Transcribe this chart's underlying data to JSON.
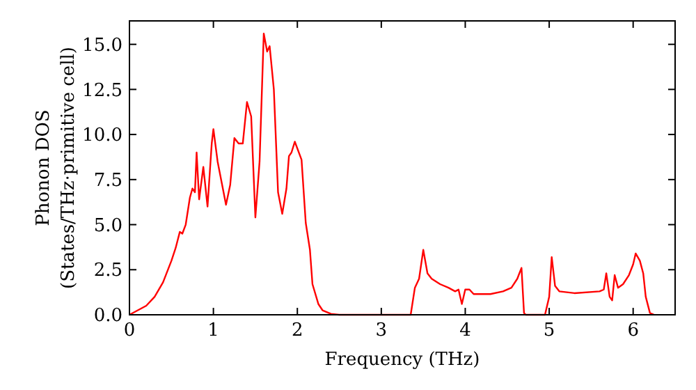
{
  "chart_data": {
    "type": "line",
    "xlabel": "Frequency (THz)",
    "ylabel": "Phonon DOS\n(States/THz·primitive cell)",
    "xlim": [
      0,
      6.5
    ],
    "ylim": [
      0,
      16.3
    ],
    "xticks": [
      0,
      1,
      2,
      3,
      4,
      5,
      6
    ],
    "yticks": [
      {
        "value": 0,
        "label": "0.0"
      },
      {
        "value": 2.5,
        "label": "2.5"
      },
      {
        "value": 5,
        "label": "5.0"
      },
      {
        "value": 7.5,
        "label": "7.5"
      },
      {
        "value": 10,
        "label": "10.0"
      },
      {
        "value": 12.5,
        "label": "12.5"
      },
      {
        "value": 15,
        "label": "15.0"
      }
    ],
    "grid": false,
    "marker": "none",
    "line_style": "solid",
    "series": [
      {
        "color": "#ff0000",
        "x": [
          0,
          0.2,
          0.3,
          0.4,
          0.5,
          0.55,
          0.6,
          0.63,
          0.67,
          0.72,
          0.75,
          0.78,
          0.8,
          0.83,
          0.88,
          0.93,
          0.98,
          1.0,
          1.05,
          1.1,
          1.15,
          1.2,
          1.25,
          1.3,
          1.35,
          1.4,
          1.45,
          1.5,
          1.55,
          1.6,
          1.64,
          1.67,
          1.72,
          1.77,
          1.82,
          1.87,
          1.9,
          1.93,
          1.97,
          2.05,
          2.1,
          2.15,
          2.18,
          2.25,
          2.3,
          2.4,
          2.5,
          3.35,
          3.4,
          3.45,
          3.5,
          3.55,
          3.6,
          3.7,
          3.8,
          3.88,
          3.92,
          3.96,
          4.0,
          4.05,
          4.1,
          4.3,
          4.45,
          4.55,
          4.62,
          4.67,
          4.7,
          4.72,
          4.95,
          5.0,
          5.03,
          5.07,
          5.12,
          5.3,
          5.6,
          5.65,
          5.68,
          5.72,
          5.75,
          5.78,
          5.82,
          5.88,
          5.95,
          6.0,
          6.03,
          6.08,
          6.12,
          6.15,
          6.2,
          6.25
        ],
        "values": [
          0,
          0.5,
          1.0,
          1.8,
          3.0,
          3.7,
          4.6,
          4.5,
          5.0,
          6.5,
          7.0,
          6.8,
          9.0,
          6.4,
          8.2,
          6.0,
          9.5,
          10.3,
          8.5,
          7.3,
          6.1,
          7.2,
          9.8,
          9.5,
          9.5,
          11.8,
          11.0,
          5.4,
          8.5,
          15.6,
          14.6,
          14.9,
          12.5,
          6.8,
          5.6,
          7.0,
          8.8,
          9.0,
          9.6,
          8.6,
          5.1,
          3.6,
          1.7,
          0.6,
          0.25,
          0.05,
          0,
          0,
          1.5,
          2.0,
          3.6,
          2.3,
          2.0,
          1.7,
          1.5,
          1.3,
          1.4,
          0.6,
          1.4,
          1.4,
          1.15,
          1.15,
          1.3,
          1.5,
          2.0,
          2.6,
          0.1,
          0,
          0,
          1.0,
          3.2,
          1.6,
          1.3,
          1.2,
          1.3,
          1.4,
          2.3,
          1.0,
          0.8,
          2.2,
          1.5,
          1.7,
          2.2,
          2.8,
          3.4,
          3.0,
          2.3,
          1.0,
          0.1,
          0
        ]
      }
    ]
  }
}
